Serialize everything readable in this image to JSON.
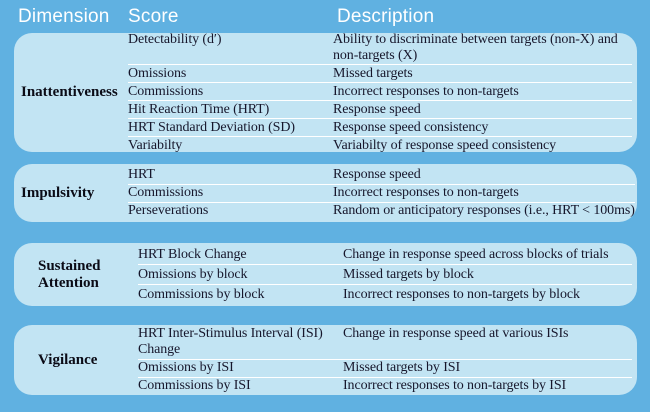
{
  "header": {
    "columns": [
      {
        "label": "Dimension"
      },
      {
        "label": "Score"
      },
      {
        "label": "Description"
      }
    ]
  },
  "colors": {
    "background": "#60B1E1",
    "panel": "#C2E4F3",
    "header_text": "#FFFFFF",
    "body_text": "#16162B",
    "dimension_text": "#0B0B16",
    "divider": "#FFFFFF"
  },
  "sections": [
    {
      "dimension": "Inattentiveness",
      "rows": [
        {
          "score": "Detectability (d′)",
          "description": "Ability to discriminate between targets (non-X) and non-targets (X)"
        },
        {
          "score": "Omissions",
          "description": "Missed targets"
        },
        {
          "score": "Commissions",
          "description": "Incorrect responses to non-targets"
        },
        {
          "score": "Hit Reaction Time (HRT)",
          "description": "Response speed"
        },
        {
          "score": "HRT Standard Deviation (SD)",
          "description": "Response speed consistency"
        },
        {
          "score": "Variabilty",
          "description": "Variabilty of response speed consistency"
        }
      ]
    },
    {
      "dimension": "Impulsivity",
      "rows": [
        {
          "score": "HRT",
          "description": "Response speed"
        },
        {
          "score": "Commissions",
          "description": "Incorrect responses to non-targets"
        },
        {
          "score": "Perseverations",
          "description": "Random or anticipatory responses (i.e., HRT < 100ms)"
        }
      ]
    },
    {
      "dimension": "Sustained Attention",
      "rows": [
        {
          "score": "HRT Block Change",
          "description": "Change in response speed across blocks of trials"
        },
        {
          "score": "Omissions by block",
          "description": "Missed targets by block"
        },
        {
          "score": "Commissions by block",
          "description": "Incorrect responses to non-targets by block"
        }
      ]
    },
    {
      "dimension": "Vigilance",
      "rows": [
        {
          "score": "HRT Inter-Stimulus Interval (ISI) Change",
          "description": "Change in response speed at various ISIs"
        },
        {
          "score": "Omissions by ISI",
          "description": "Missed targets by ISI"
        },
        {
          "score": "Commissions by ISI",
          "description": "Incorrect responses to non-targets by ISI"
        }
      ]
    }
  ]
}
